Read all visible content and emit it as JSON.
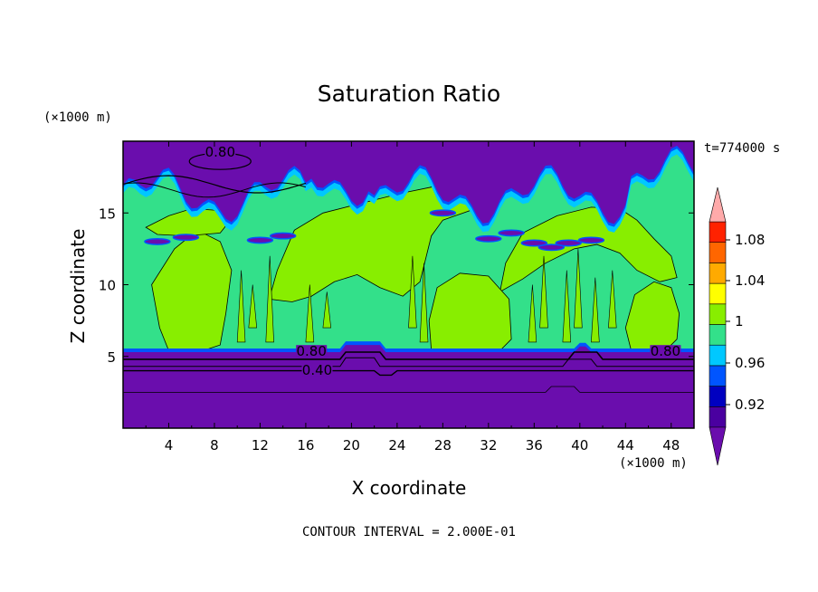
{
  "chart_data": {
    "type": "heatmap",
    "title": "Saturation Ratio",
    "xlabel": "X coordinate",
    "ylabel": "Z coordinate",
    "x_unit": "(×1000 m)",
    "y_unit": "(×1000 m)",
    "time_label": "t=774000 s",
    "footer": "CONTOUR INTERVAL = 2.000E-01",
    "xlim": [
      0,
      50
    ],
    "ylim": [
      0,
      20
    ],
    "x_ticks": [
      4,
      8,
      12,
      16,
      20,
      24,
      28,
      32,
      36,
      40,
      44,
      48
    ],
    "y_ticks": [
      5,
      10,
      15
    ],
    "contour_labels": [
      {
        "text": "0.80",
        "x": 8.5,
        "z": 19.0
      },
      {
        "text": "0.80",
        "x": 16.5,
        "z": 5.1
      },
      {
        "text": "0.40",
        "x": 17.0,
        "z": 3.8
      },
      {
        "text": "0.80",
        "x": 47.5,
        "z": 5.1
      }
    ],
    "colorbar": {
      "labels": [
        "1.08",
        "1.04",
        "1",
        "0.96",
        "0.92"
      ],
      "colors": [
        "#6a0dad",
        "#4a00a0",
        "#0000c0",
        "#0055ff",
        "#00c8ff",
        "#33e08a",
        "#88ee00",
        "#ffff00",
        "#ffaa00",
        "#ff6600",
        "#ff2200",
        "#ffaaaa"
      ]
    },
    "regions": {
      "upper_dry_top": 19.9,
      "upper_dry_bottom": 15.6,
      "lower_dry_top": 5.3,
      "moist_color": "#33e08a",
      "saturated_color": "#88ee00",
      "dry_color": "#6a0dad",
      "transition_color": "#0055ff",
      "cyan_color": "#00c8ff"
    }
  }
}
